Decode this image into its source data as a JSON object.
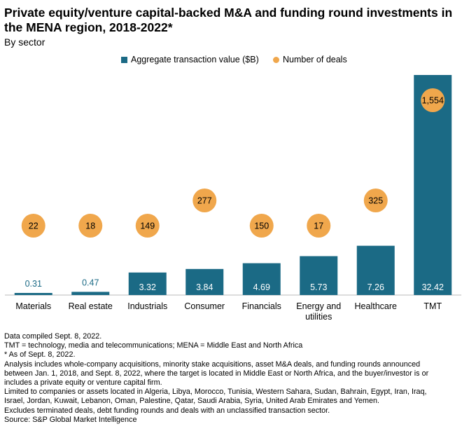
{
  "title": "Private equity/venture capital-backed M&A and funding round investments in the MENA region, 2018-2022*",
  "subtitle": "By sector",
  "colors": {
    "bar": "#1B6A85",
    "dot": "#F0A74C",
    "axis": "#bbbbbb"
  },
  "chart_data": {
    "type": "bar",
    "categories": [
      "Materials",
      "Real estate",
      "Industrials",
      "Consumer",
      "Financials",
      "Energy and utilities",
      "Healthcare",
      "TMT"
    ],
    "series": [
      {
        "name": "Aggregate transaction value ($B)",
        "type": "bar",
        "values": [
          0.31,
          0.47,
          3.32,
          3.84,
          4.69,
          5.73,
          7.26,
          32.42
        ],
        "labels": [
          "0.31",
          "0.47",
          "3.32",
          "3.84",
          "4.69",
          "5.73",
          "7.26",
          "32.42"
        ]
      },
      {
        "name": "Number of deals",
        "type": "dot",
        "values": [
          22,
          18,
          149,
          277,
          150,
          17,
          325,
          1554
        ],
        "labels": [
          "22",
          "18",
          "149",
          "277",
          "150",
          "17",
          "325",
          "1,554"
        ]
      }
    ],
    "legend_position": "top-center",
    "grid": false
  },
  "notes": [
    "Data compiled Sept. 8, 2022.",
    "TMT = technology, media and telecommunications; MENA = Middle East and North Africa",
    "* As of Sept. 8, 2022.",
    "Analysis includes whole-company acquisitions, minority stake acquisitions, asset M&A deals, and funding rounds announced",
    "between Jan. 1, 2018, and Sept. 8, 2022, where the target is located in Middle East or North Africa, and the buyer/investor is or",
    "includes a private equity or venture capital firm.",
    "Limited to companies or assets located in Algeria, Libya, Morocco, Tunisia, Western Sahara, Sudan, Bahrain, Egypt, Iran, Iraq,",
    "Israel, Jordan, Kuwait, Lebanon, Oman, Palestine, Qatar, Saudi Arabia, Syria, United Arab Emirates and Yemen.",
    "Excludes terminated deals, debt funding rounds and deals with an unclassified transaction sector.",
    "Source: S&P Global Market Intelligence"
  ]
}
